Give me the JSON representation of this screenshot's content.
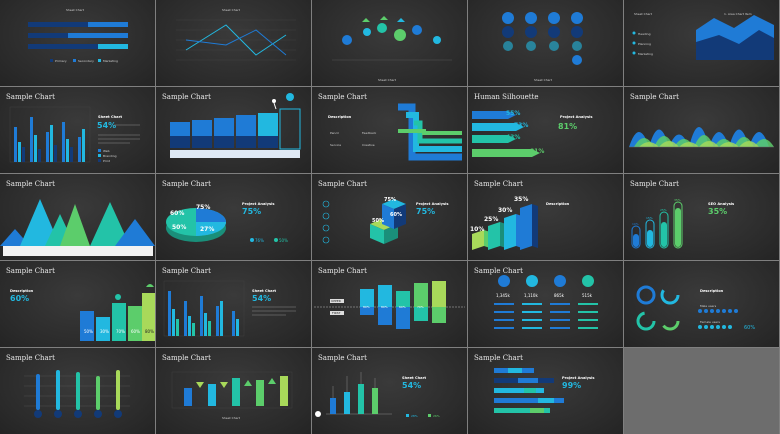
{
  "colors": {
    "blue": "#1f7bd6",
    "cyan": "#22b8e0",
    "teal": "#23c3a8",
    "green": "#5ccd6b",
    "lime": "#a8d95a",
    "navy": "#123a78",
    "bg": "#2d2d2d"
  },
  "slides": {
    "s1": {
      "title": "Sheet Chart",
      "legend": [
        "Primary",
        "Secondary",
        "Marketing"
      ]
    },
    "s2": {
      "title": "Sheet Chart"
    },
    "s3": {
      "title": "Sheet Chart"
    },
    "s4": {
      "title": "Sheet Chart"
    },
    "s5": {
      "title": "Sheet Chart",
      "subtitle": "1. Area Chart Item",
      "items": [
        "Heading",
        "Planning",
        "Marketing"
      ]
    },
    "s6": {
      "title": "Sample Chart",
      "pct": "54%",
      "heading": "Sheet Chart",
      "legend": [
        "Web",
        "Branding",
        "Print"
      ]
    },
    "s7": {
      "title": "Sample Chart"
    },
    "s8": {
      "title": "Sample Chart",
      "heading": "Description",
      "items": [
        "Pencil",
        "Feedback",
        "Service",
        "Creative"
      ]
    },
    "s9": {
      "title": "Human Silhouette",
      "pct": "81%",
      "heading": "Project Analysis",
      "vals": [
        "55%",
        "73%",
        "43%",
        "81%"
      ]
    },
    "s10": {
      "title": "Sample Chart"
    },
    "s11": {
      "title": "Sample Chart"
    },
    "s12": {
      "title": "Sample Chart",
      "pct": "75%",
      "heading": "Project Analysis",
      "pie": [
        "60%",
        "75%",
        "50%",
        "27%"
      ],
      "stats": [
        "76%",
        "50%"
      ]
    },
    "s13": {
      "title": "Sample Chart",
      "pct": "75%",
      "heading": "Project Analysis",
      "vals": [
        "75%",
        "60%",
        "50%"
      ]
    },
    "s14": {
      "title": "Sample Chart",
      "vals": [
        "10%",
        "25%",
        "30%",
        "35%"
      ],
      "heading": "Description"
    },
    "s15": {
      "title": "Sample Chart",
      "pct": "35%",
      "heading": "SEO Analysis",
      "vals": [
        "10%",
        "15%",
        "25%",
        "35%"
      ]
    },
    "s16": {
      "title": "Sample Chart",
      "pct": "60%",
      "heading": "Description",
      "vals": [
        "50%",
        "30%",
        "70%",
        "60%",
        "80%"
      ]
    },
    "s17": {
      "title": "Sample Chart",
      "pct": "54%",
      "heading": "Sheet Chart"
    },
    "s18": {
      "title": "Sample Chart",
      "labels": [
        "UPPER",
        "FIRST"
      ],
      "vals": [
        "80%",
        "15%",
        "80%",
        "12%",
        "60%",
        "25%",
        "70%",
        "35%"
      ]
    },
    "s19": {
      "title": "Sample Chart",
      "vals": [
        "1,345k",
        "1,110k",
        "865k",
        "515k"
      ]
    },
    "s20": {
      "title": "Sample Chart",
      "heading": "Description",
      "rows": [
        "Male users",
        "Female users"
      ],
      "pct": "60%"
    },
    "s21": {
      "title": "Sample Chart"
    },
    "s22": {
      "title": "Sample Chart",
      "heading": "Sheet Chart"
    },
    "s23": {
      "title": "Sample Chart",
      "pct": "54%",
      "heading": "Sheet Chart",
      "stats": [
        "28%",
        "26%"
      ]
    },
    "s24": {
      "title": "Sample Chart",
      "pct": "99%",
      "heading": "Project Analysis"
    }
  }
}
